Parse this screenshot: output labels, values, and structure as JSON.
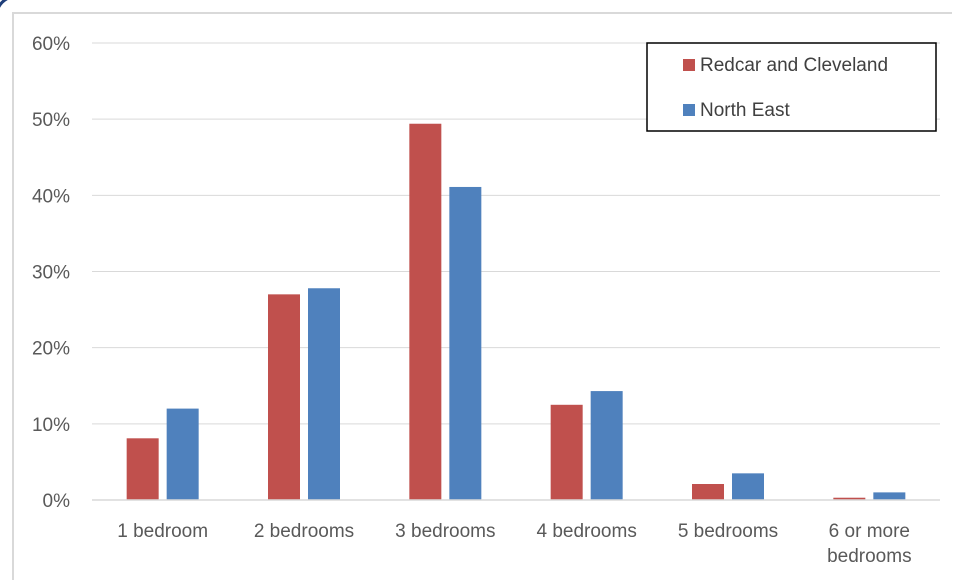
{
  "chart_data": {
    "type": "bar",
    "categories": [
      "1 bedroom",
      "2 bedrooms",
      "3 bedrooms",
      "4 bedrooms",
      "5 bedrooms",
      "6 or more bedrooms"
    ],
    "category_lines": [
      [
        "1 bedroom"
      ],
      [
        "2 bedrooms"
      ],
      [
        "3 bedrooms"
      ],
      [
        "4 bedrooms"
      ],
      [
        "5 bedrooms"
      ],
      [
        "6 or more",
        "bedrooms"
      ]
    ],
    "series": [
      {
        "name": "Redcar and Cleveland",
        "color": "#c0504d",
        "values": [
          8.1,
          27.0,
          49.4,
          12.5,
          2.1,
          0.3
        ]
      },
      {
        "name": "North East",
        "color": "#4f81bd",
        "values": [
          12.0,
          27.8,
          41.1,
          14.3,
          3.5,
          1.0
        ]
      }
    ],
    "y_ticks": [
      "0%",
      "10%",
      "20%",
      "30%",
      "40%",
      "50%",
      "60%"
    ],
    "ylim": [
      0,
      60
    ],
    "grid": true,
    "legend_position": "top-right"
  }
}
